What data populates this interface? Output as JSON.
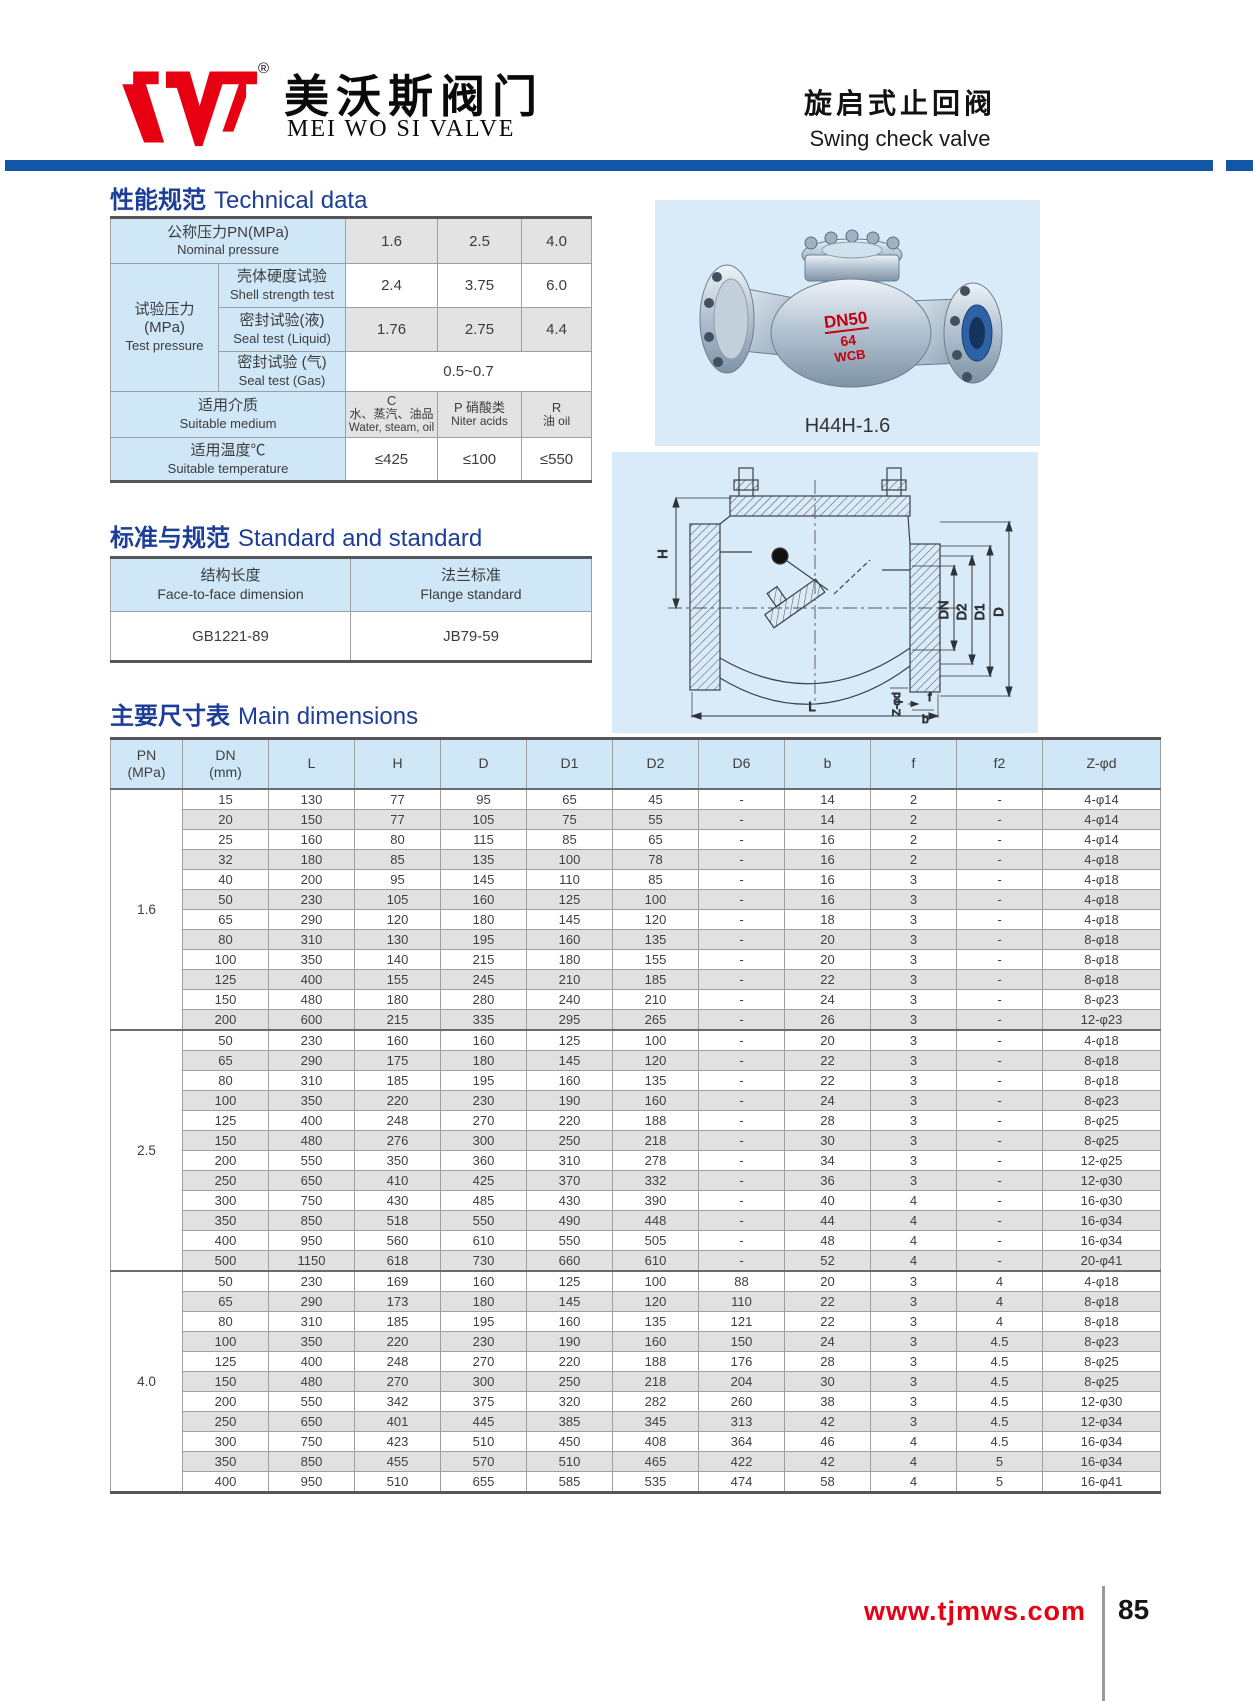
{
  "header": {
    "brand_cn": "美沃斯阀门",
    "brand_en": "MEI WO SI VALVE",
    "registered_mark": "®",
    "product_cn": "旋启式止回阀",
    "product_en": "Swing check valve"
  },
  "colors": {
    "accent_blue": "#1157a5",
    "title_blue": "#1c3e99",
    "brand_red": "#e60012",
    "header_cell_blue": "#cfe7f7",
    "stripe_gray": "#e1e1e1",
    "panel_blue": "#d9ebf9"
  },
  "technical": {
    "section_title_cn": "性能规范",
    "section_title_en": "Technical data",
    "nominal_label_cn": "公称压力PN(MPa)",
    "nominal_label_en": "Nominal pressure",
    "nominal_values": [
      "1.6",
      "2.5",
      "4.0"
    ],
    "test_label_cn": "试验压力",
    "test_label_unit": "(MPa)",
    "test_label_en": "Test pressure",
    "shell_cn": "壳体硬度试验",
    "shell_en": "Shell strength test",
    "shell_values": [
      "2.4",
      "3.75",
      "6.0"
    ],
    "liquid_cn": "密封试验(液)",
    "liquid_en": "Seal test (Liquid)",
    "liquid_values": [
      "1.76",
      "2.75",
      "4.4"
    ],
    "gas_cn": "密封试验 (气)",
    "gas_en": "Seal test (Gas)",
    "gas_value": "0.5~0.7",
    "medium_cn": "适用介质",
    "medium_en": "Suitable medium",
    "medium_c_code": "C",
    "medium_c_cn": "水、蒸汽、油品",
    "medium_c_en": "Water, steam, oil",
    "medium_p_line1": "P 硝酸类",
    "medium_p_line2": "Niter acids",
    "medium_r_line1": "R",
    "medium_r_line2": "油 oil",
    "temp_cn": "适用温度℃",
    "temp_en": "Suitable temperature",
    "temp_values": [
      "≤425",
      "≤100",
      "≤550"
    ]
  },
  "standard": {
    "section_title_cn": "标准与规范",
    "section_title_en": "Standard and standard",
    "col1_cn": "结构长度",
    "col1_en": "Face-to-face dimension",
    "col2_cn": "法兰标准",
    "col2_en": "Flange standard",
    "col1_value": "GB1221-89",
    "col2_value": "JB79-59"
  },
  "photo": {
    "model": "H44H-1.6",
    "markings": [
      "DN50",
      "64",
      "WCB"
    ]
  },
  "drawing": {
    "labels": {
      "h": "H",
      "dn": "DN",
      "d2": "D2",
      "d1": "D1",
      "d": "D",
      "zd": "Z-φd",
      "f": "f",
      "b": "b",
      "l": "L"
    }
  },
  "dimensions": {
    "section_title_cn": "主要尺寸表",
    "section_title_en": "Main dimensions",
    "columns": [
      {
        "l1": "PN",
        "l2": "(MPa)"
      },
      {
        "l1": "DN",
        "l2": "(mm)"
      },
      {
        "l1": "L"
      },
      {
        "l1": "H"
      },
      {
        "l1": "D"
      },
      {
        "l1": "D1"
      },
      {
        "l1": "D2"
      },
      {
        "l1": "D6"
      },
      {
        "l1": "b"
      },
      {
        "l1": "f"
      },
      {
        "l1": "f2"
      },
      {
        "l1": "Z-φd"
      }
    ],
    "groups": [
      {
        "pn": "1.6",
        "rows": [
          [
            "15",
            "130",
            "77",
            "95",
            "65",
            "45",
            "-",
            "14",
            "2",
            "-",
            "4-φ14"
          ],
          [
            "20",
            "150",
            "77",
            "105",
            "75",
            "55",
            "-",
            "14",
            "2",
            "-",
            "4-φ14"
          ],
          [
            "25",
            "160",
            "80",
            "115",
            "85",
            "65",
            "-",
            "16",
            "2",
            "-",
            "4-φ14"
          ],
          [
            "32",
            "180",
            "85",
            "135",
            "100",
            "78",
            "-",
            "16",
            "2",
            "-",
            "4-φ18"
          ],
          [
            "40",
            "200",
            "95",
            "145",
            "110",
            "85",
            "-",
            "16",
            "3",
            "-",
            "4-φ18"
          ],
          [
            "50",
            "230",
            "105",
            "160",
            "125",
            "100",
            "-",
            "16",
            "3",
            "-",
            "4-φ18"
          ],
          [
            "65",
            "290",
            "120",
            "180",
            "145",
            "120",
            "-",
            "18",
            "3",
            "-",
            "4-φ18"
          ],
          [
            "80",
            "310",
            "130",
            "195",
            "160",
            "135",
            "-",
            "20",
            "3",
            "-",
            "8-φ18"
          ],
          [
            "100",
            "350",
            "140",
            "215",
            "180",
            "155",
            "-",
            "20",
            "3",
            "-",
            "8-φ18"
          ],
          [
            "125",
            "400",
            "155",
            "245",
            "210",
            "185",
            "-",
            "22",
            "3",
            "-",
            "8-φ18"
          ],
          [
            "150",
            "480",
            "180",
            "280",
            "240",
            "210",
            "-",
            "24",
            "3",
            "-",
            "8-φ23"
          ],
          [
            "200",
            "600",
            "215",
            "335",
            "295",
            "265",
            "-",
            "26",
            "3",
            "-",
            "12-φ23"
          ]
        ]
      },
      {
        "pn": "2.5",
        "rows": [
          [
            "50",
            "230",
            "160",
            "160",
            "125",
            "100",
            "-",
            "20",
            "3",
            "-",
            "4-φ18"
          ],
          [
            "65",
            "290",
            "175",
            "180",
            "145",
            "120",
            "-",
            "22",
            "3",
            "-",
            "8-φ18"
          ],
          [
            "80",
            "310",
            "185",
            "195",
            "160",
            "135",
            "-",
            "22",
            "3",
            "-",
            "8-φ18"
          ],
          [
            "100",
            "350",
            "220",
            "230",
            "190",
            "160",
            "-",
            "24",
            "3",
            "-",
            "8-φ23"
          ],
          [
            "125",
            "400",
            "248",
            "270",
            "220",
            "188",
            "-",
            "28",
            "3",
            "-",
            "8-φ25"
          ],
          [
            "150",
            "480",
            "276",
            "300",
            "250",
            "218",
            "-",
            "30",
            "3",
            "-",
            "8-φ25"
          ],
          [
            "200",
            "550",
            "350",
            "360",
            "310",
            "278",
            "-",
            "34",
            "3",
            "-",
            "12-φ25"
          ],
          [
            "250",
            "650",
            "410",
            "425",
            "370",
            "332",
            "-",
            "36",
            "3",
            "-",
            "12-φ30"
          ],
          [
            "300",
            "750",
            "430",
            "485",
            "430",
            "390",
            "-",
            "40",
            "4",
            "-",
            "16-φ30"
          ],
          [
            "350",
            "850",
            "518",
            "550",
            "490",
            "448",
            "-",
            "44",
            "4",
            "-",
            "16-φ34"
          ],
          [
            "400",
            "950",
            "560",
            "610",
            "550",
            "505",
            "-",
            "48",
            "4",
            "-",
            "16-φ34"
          ],
          [
            "500",
            "1150",
            "618",
            "730",
            "660",
            "610",
            "-",
            "52",
            "4",
            "-",
            "20-φ41"
          ]
        ]
      },
      {
        "pn": "4.0",
        "rows": [
          [
            "50",
            "230",
            "169",
            "160",
            "125",
            "100",
            "88",
            "20",
            "3",
            "4",
            "4-φ18"
          ],
          [
            "65",
            "290",
            "173",
            "180",
            "145",
            "120",
            "110",
            "22",
            "3",
            "4",
            "8-φ18"
          ],
          [
            "80",
            "310",
            "185",
            "195",
            "160",
            "135",
            "121",
            "22",
            "3",
            "4",
            "8-φ18"
          ],
          [
            "100",
            "350",
            "220",
            "230",
            "190",
            "160",
            "150",
            "24",
            "3",
            "4.5",
            "8-φ23"
          ],
          [
            "125",
            "400",
            "248",
            "270",
            "220",
            "188",
            "176",
            "28",
            "3",
            "4.5",
            "8-φ25"
          ],
          [
            "150",
            "480",
            "270",
            "300",
            "250",
            "218",
            "204",
            "30",
            "3",
            "4.5",
            "8-φ25"
          ],
          [
            "200",
            "550",
            "342",
            "375",
            "320",
            "282",
            "260",
            "38",
            "3",
            "4.5",
            "12-φ30"
          ],
          [
            "250",
            "650",
            "401",
            "445",
            "385",
            "345",
            "313",
            "42",
            "3",
            "4.5",
            "12-φ34"
          ],
          [
            "300",
            "750",
            "423",
            "510",
            "450",
            "408",
            "364",
            "46",
            "4",
            "4.5",
            "16-φ34"
          ],
          [
            "350",
            "850",
            "455",
            "570",
            "510",
            "465",
            "422",
            "42",
            "4",
            "5",
            "16-φ34"
          ],
          [
            "400",
            "950",
            "510",
            "655",
            "585",
            "535",
            "474",
            "58",
            "4",
            "5",
            "16-φ41"
          ]
        ]
      }
    ]
  },
  "footer": {
    "website": "www.tjmws.com",
    "page_number": "85"
  }
}
